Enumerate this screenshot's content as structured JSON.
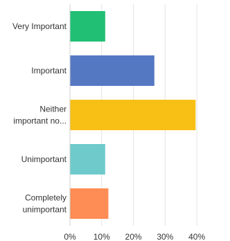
{
  "chart_data": {
    "type": "bar",
    "orientation": "horizontal",
    "categories": [
      [
        "Very Important"
      ],
      [
        "Important"
      ],
      [
        "Neither",
        "important no..."
      ],
      [
        "Unimportant"
      ],
      [
        "Completely",
        "unimportant"
      ]
    ],
    "values": [
      11,
      26.5,
      39.5,
      11,
      12
    ],
    "colors": [
      "#21bf73",
      "#5578c2",
      "#f8bf14",
      "#6fcacb",
      "#fd8c55"
    ],
    "xlim": [
      0,
      45
    ],
    "xticks": [
      0,
      10,
      20,
      30,
      40
    ],
    "xtick_labels": [
      "0%",
      "10%",
      "20%",
      "30%",
      "40%"
    ],
    "grid": true,
    "title": "",
    "xlabel": "",
    "ylabel": ""
  }
}
